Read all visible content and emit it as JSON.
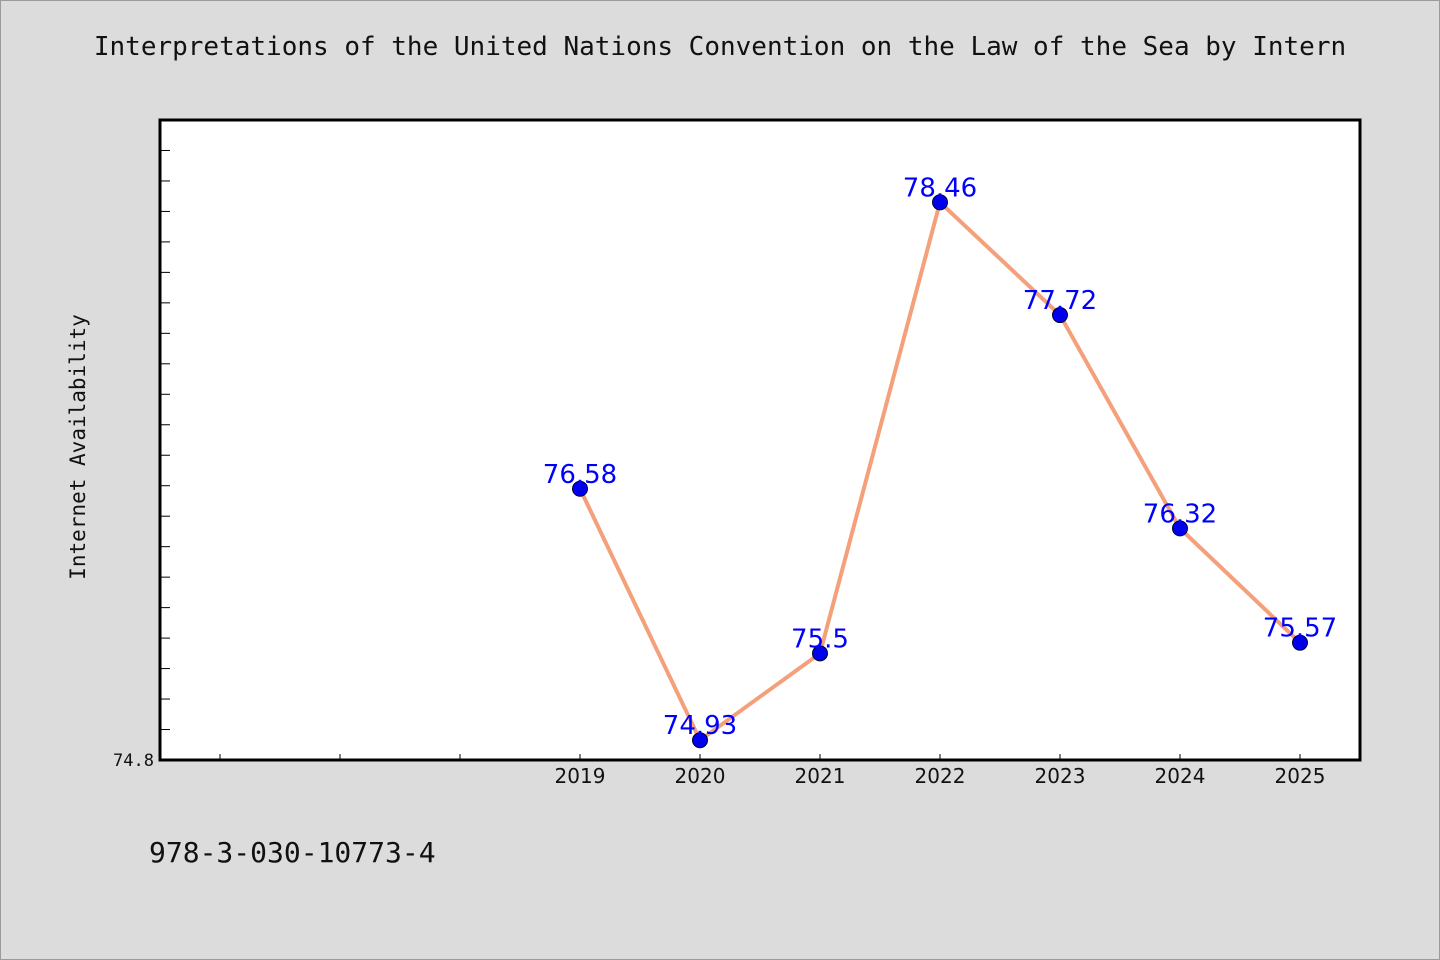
{
  "title": "Interpretations of the United Nations Convention on the Law of the Sea by Intern",
  "footer_text": "978-3-030-10773-4",
  "colors": {
    "background": "#dcdcdc",
    "plot_background": "#ffffff",
    "line": "#f4a07a",
    "marker": "#0000ee",
    "data_label": "#0000ff"
  },
  "chart_data": {
    "type": "line",
    "title": "Interpretations of the United Nations Convention on the Law of the Sea by Intern",
    "xlabel": "",
    "ylabel": "Internet Availability",
    "x_extra_ticks": 3,
    "categories": [
      "2019",
      "2020",
      "2021",
      "2022",
      "2023",
      "2024",
      "2025"
    ],
    "series": [
      {
        "values": [
          76.58,
          74.93,
          75.5,
          78.46,
          77.72,
          76.32,
          75.57
        ]
      }
    ],
    "ylim": [
      74.8,
      79.0
    ],
    "yticks_labeled": [
      "74.8"
    ],
    "grid": false,
    "legend": "none"
  }
}
